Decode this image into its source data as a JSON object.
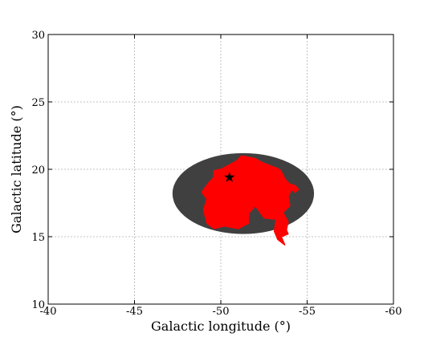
{
  "chart_data": {
    "type": "scatter",
    "xlabel": "Galactic longitude (°)",
    "ylabel": "Galactic latitude (°)",
    "xlim": [
      -40,
      -60
    ],
    "ylim": [
      10,
      30
    ],
    "x_ticks": [
      "-40",
      "-45",
      "-50",
      "-55",
      "-60"
    ],
    "y_ticks": [
      "10",
      "15",
      "20",
      "25",
      "30"
    ],
    "grid": true,
    "ellipse": {
      "center": [
        -51.3,
        18.2
      ],
      "half_width": 4.1,
      "half_height": 3.0,
      "color": "#404040"
    },
    "star": {
      "x": -50.5,
      "y": 19.4,
      "color": "#000000"
    },
    "region_color": "#ff0000",
    "region": [
      [
        -50.0,
        20.0
      ],
      [
        -50.9,
        20.6
      ],
      [
        -51.2,
        21.0
      ],
      [
        -52.0,
        20.8
      ],
      [
        -52.4,
        20.5
      ],
      [
        -52.8,
        20.3
      ],
      [
        -53.4,
        20.0
      ],
      [
        -53.6,
        19.6
      ],
      [
        -53.7,
        19.3
      ],
      [
        -54.0,
        18.9
      ],
      [
        -54.3,
        18.8
      ],
      [
        -54.5,
        18.5
      ],
      [
        -54.3,
        18.3
      ],
      [
        -54.1,
        18.5
      ],
      [
        -53.9,
        18.0
      ],
      [
        -54.0,
        17.3
      ],
      [
        -53.6,
        16.8
      ],
      [
        -53.9,
        16.1
      ],
      [
        -53.8,
        15.5
      ],
      [
        -53.9,
        15.2
      ],
      [
        -53.5,
        15.0
      ],
      [
        -53.7,
        14.4
      ],
      [
        -53.3,
        14.8
      ],
      [
        -53.1,
        15.4
      ],
      [
        -53.2,
        16.3
      ],
      [
        -52.5,
        16.4
      ],
      [
        -52.0,
        17.3
      ],
      [
        -51.6,
        16.7
      ],
      [
        -51.6,
        16.0
      ],
      [
        -51.0,
        15.6
      ],
      [
        -50.2,
        15.8
      ],
      [
        -49.6,
        15.6
      ],
      [
        -49.2,
        16.0
      ],
      [
        -49.0,
        17.0
      ],
      [
        -49.2,
        17.8
      ],
      [
        -48.9,
        18.3
      ],
      [
        -49.3,
        19.0
      ],
      [
        -49.6,
        19.4
      ],
      [
        -49.6,
        19.9
      ]
    ]
  }
}
